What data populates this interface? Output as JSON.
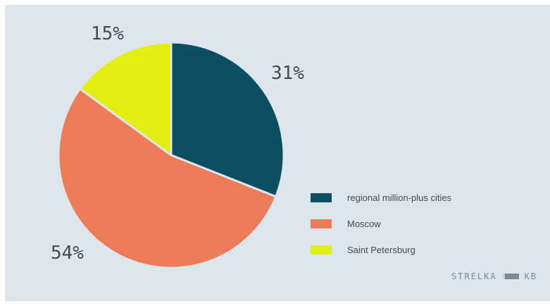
{
  "chart_data": {
    "type": "pie",
    "slices": [
      {
        "label": "regional million-plus cities",
        "value": 31,
        "display": "31%",
        "color": "#0d4f62"
      },
      {
        "label": "Moscow",
        "value": 54,
        "display": "54%",
        "color": "#ee7b57"
      },
      {
        "label": "Saint Petersburg",
        "value": 15,
        "display": "15%",
        "color": "#e3ee12"
      }
    ],
    "legend_position": "bottom-right"
  },
  "footer": {
    "brand_left": "STRELKA",
    "brand_right": "KB"
  }
}
